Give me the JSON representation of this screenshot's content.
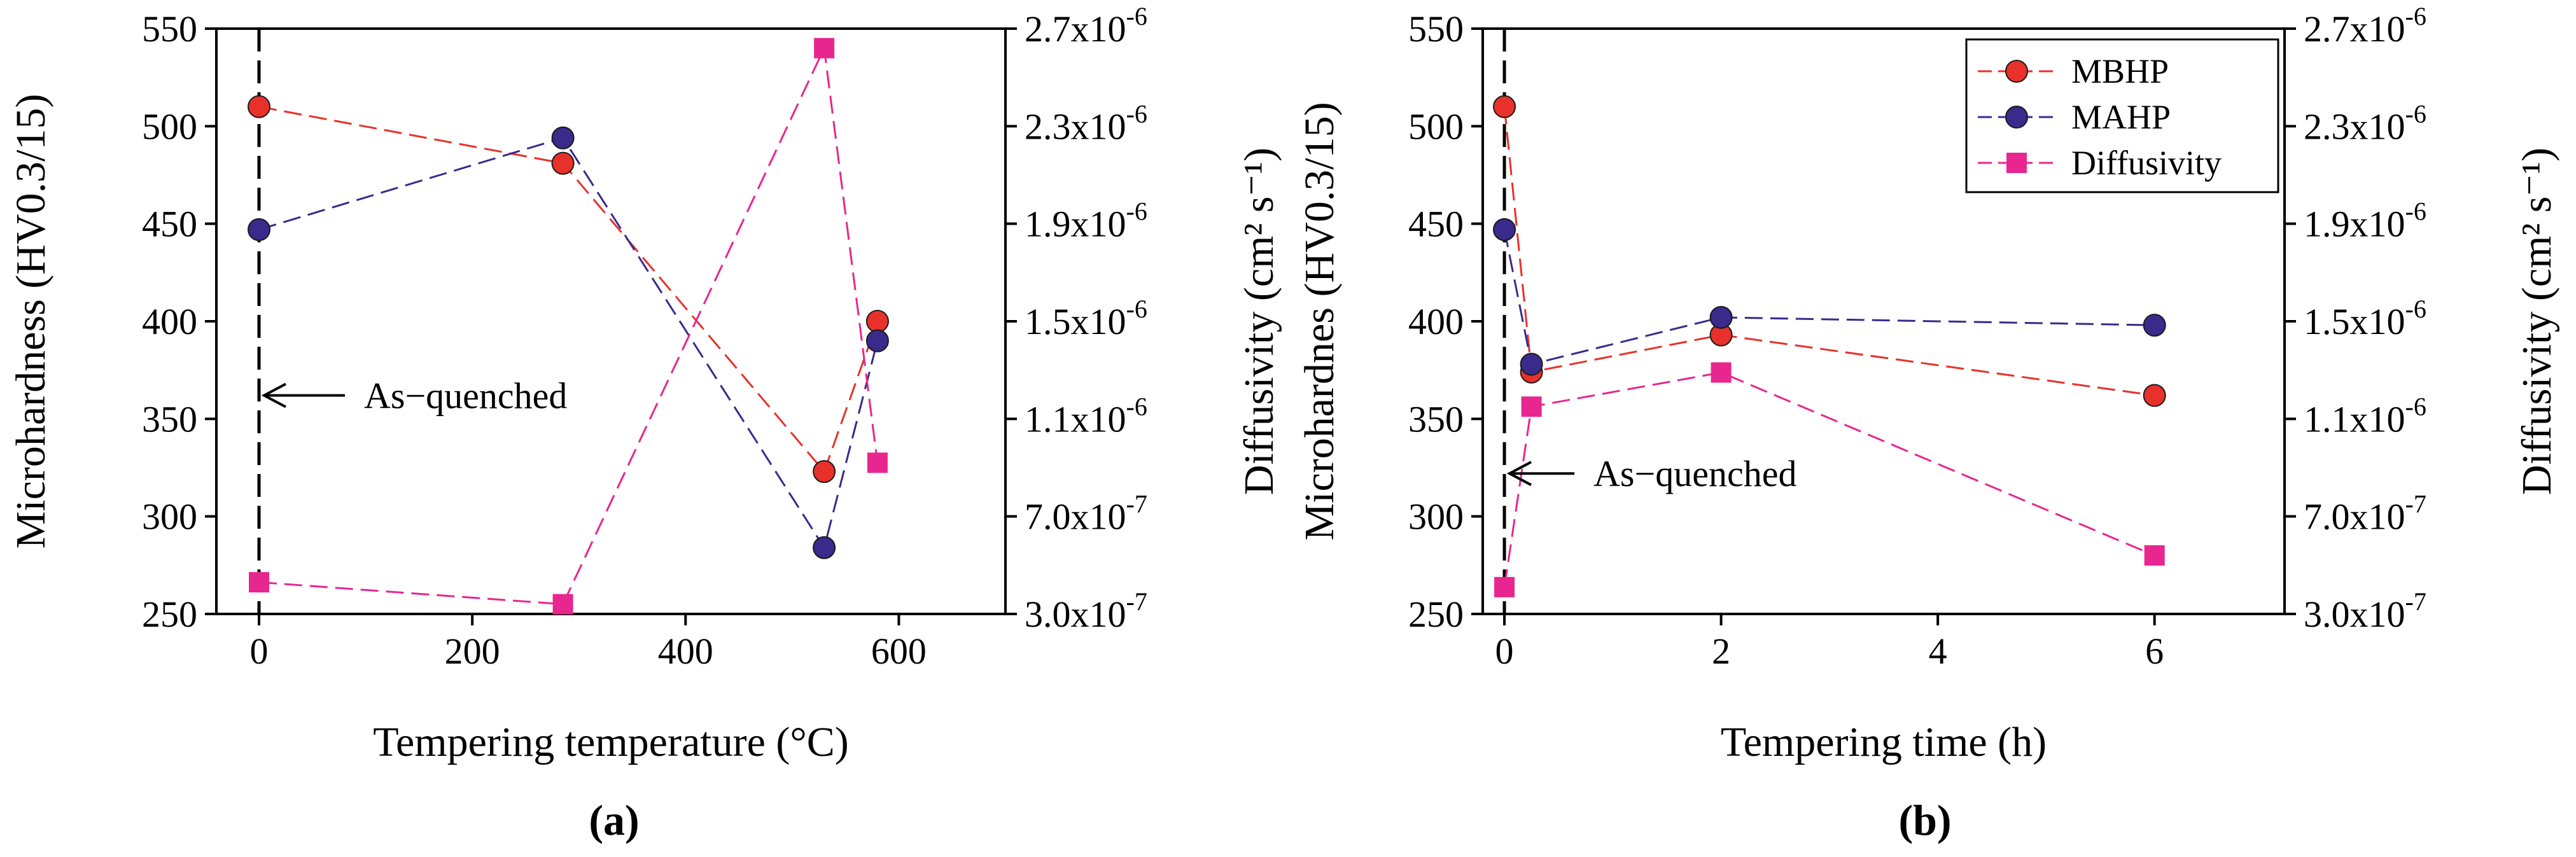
{
  "chart_data": [
    {
      "type": "line",
      "panel_label": "(a)",
      "xlabel": "Tempering temperature (°C)",
      "ylabel": "Microhardness (HV0.3/15)",
      "y2label": "Diffusivity (cm² s⁻¹)",
      "xlim": [
        -40,
        700
      ],
      "xticks": [
        0,
        200,
        400,
        600
      ],
      "xtick_labels": [
        "0",
        "200",
        "400",
        "600"
      ],
      "ylim": [
        250,
        550
      ],
      "yticks": [
        250,
        300,
        350,
        400,
        450,
        500,
        550
      ],
      "ytick_labels": [
        "250",
        "300",
        "350",
        "400",
        "450",
        "500",
        "550"
      ],
      "y2lim": [
        3e-07,
        2.7e-06
      ],
      "y2ticks": [
        3e-07,
        7e-07,
        1.1e-06,
        1.5e-06,
        1.9e-06,
        2.3e-06,
        2.7e-06
      ],
      "y2tick_mantissas": [
        "3.0x10",
        "7.0x10",
        "1.1x10",
        "1.5x10",
        "1.9x10",
        "2.3x10",
        "2.7x10"
      ],
      "y2tick_exponents": [
        "-7",
        "-7",
        "-6",
        "-6",
        "-6",
        "-6",
        "-6"
      ],
      "annotation": {
        "text": "As−quenched",
        "x": 0,
        "y": 362
      },
      "vline_x": 0,
      "series": [
        {
          "name": "MBHP",
          "axis": "left",
          "color": "#e8312b",
          "marker": "circle",
          "x": [
            0,
            285,
            530,
            580
          ],
          "y": [
            510,
            481,
            323,
            400
          ]
        },
        {
          "name": "MAHP",
          "axis": "left",
          "color": "#3a2a8c",
          "marker": "circle",
          "x": [
            0,
            285,
            530,
            580
          ],
          "y": [
            447,
            494,
            284,
            390
          ]
        },
        {
          "name": "Diffusivity",
          "axis": "right",
          "color": "#e8268f",
          "marker": "square",
          "x": [
            0,
            285,
            530,
            580
          ],
          "y": [
            4.3e-07,
            3.4e-07,
            2.62e-06,
            9.2e-07
          ]
        }
      ]
    },
    {
      "type": "line",
      "panel_label": "(b)",
      "xlabel": "Tempering time (h)",
      "ylabel": "Microhardnes (HV0.3/15)",
      "y2label": "Diffusivity (cm² s⁻¹)",
      "xlim": [
        -0.2,
        7.2
      ],
      "xticks": [
        0,
        2,
        4,
        6
      ],
      "xtick_labels": [
        "0",
        "2",
        "4",
        "6"
      ],
      "ylim": [
        250,
        550
      ],
      "yticks": [
        250,
        300,
        350,
        400,
        450,
        500,
        550
      ],
      "ytick_labels": [
        "250",
        "300",
        "350",
        "400",
        "450",
        "500",
        "550"
      ],
      "y2lim": [
        3e-07,
        2.7e-06
      ],
      "y2ticks": [
        3e-07,
        7e-07,
        1.1e-06,
        1.5e-06,
        1.9e-06,
        2.3e-06,
        2.7e-06
      ],
      "y2tick_mantissas": [
        "3.0x10",
        "7.0x10",
        "1.1x10",
        "1.5x10",
        "1.9x10",
        "2.3x10",
        "2.7x10"
      ],
      "y2tick_exponents": [
        "-7",
        "-7",
        "-6",
        "-6",
        "-6",
        "-6",
        "-6"
      ],
      "annotation": {
        "text": "As−quenched",
        "x": 0,
        "y": 322
      },
      "vline_x": 0,
      "legend": {
        "position": "top-right",
        "entries": [
          "MBHP",
          "MAHP",
          "Diffusivity"
        ]
      },
      "series": [
        {
          "name": "MBHP",
          "axis": "left",
          "color": "#e8312b",
          "marker": "circle",
          "x": [
            0,
            0.25,
            2,
            6
          ],
          "y": [
            510,
            374,
            393,
            362
          ]
        },
        {
          "name": "MAHP",
          "axis": "left",
          "color": "#3a2a8c",
          "marker": "circle",
          "x": [
            0,
            0.25,
            2,
            6
          ],
          "y": [
            447,
            378,
            402,
            398
          ]
        },
        {
          "name": "Diffusivity",
          "axis": "right",
          "color": "#e8268f",
          "marker": "square",
          "x": [
            0,
            0.25,
            2,
            6
          ],
          "y": [
            4.1e-07,
            1.15e-06,
            1.29e-06,
            5.4e-07
          ]
        }
      ]
    }
  ]
}
